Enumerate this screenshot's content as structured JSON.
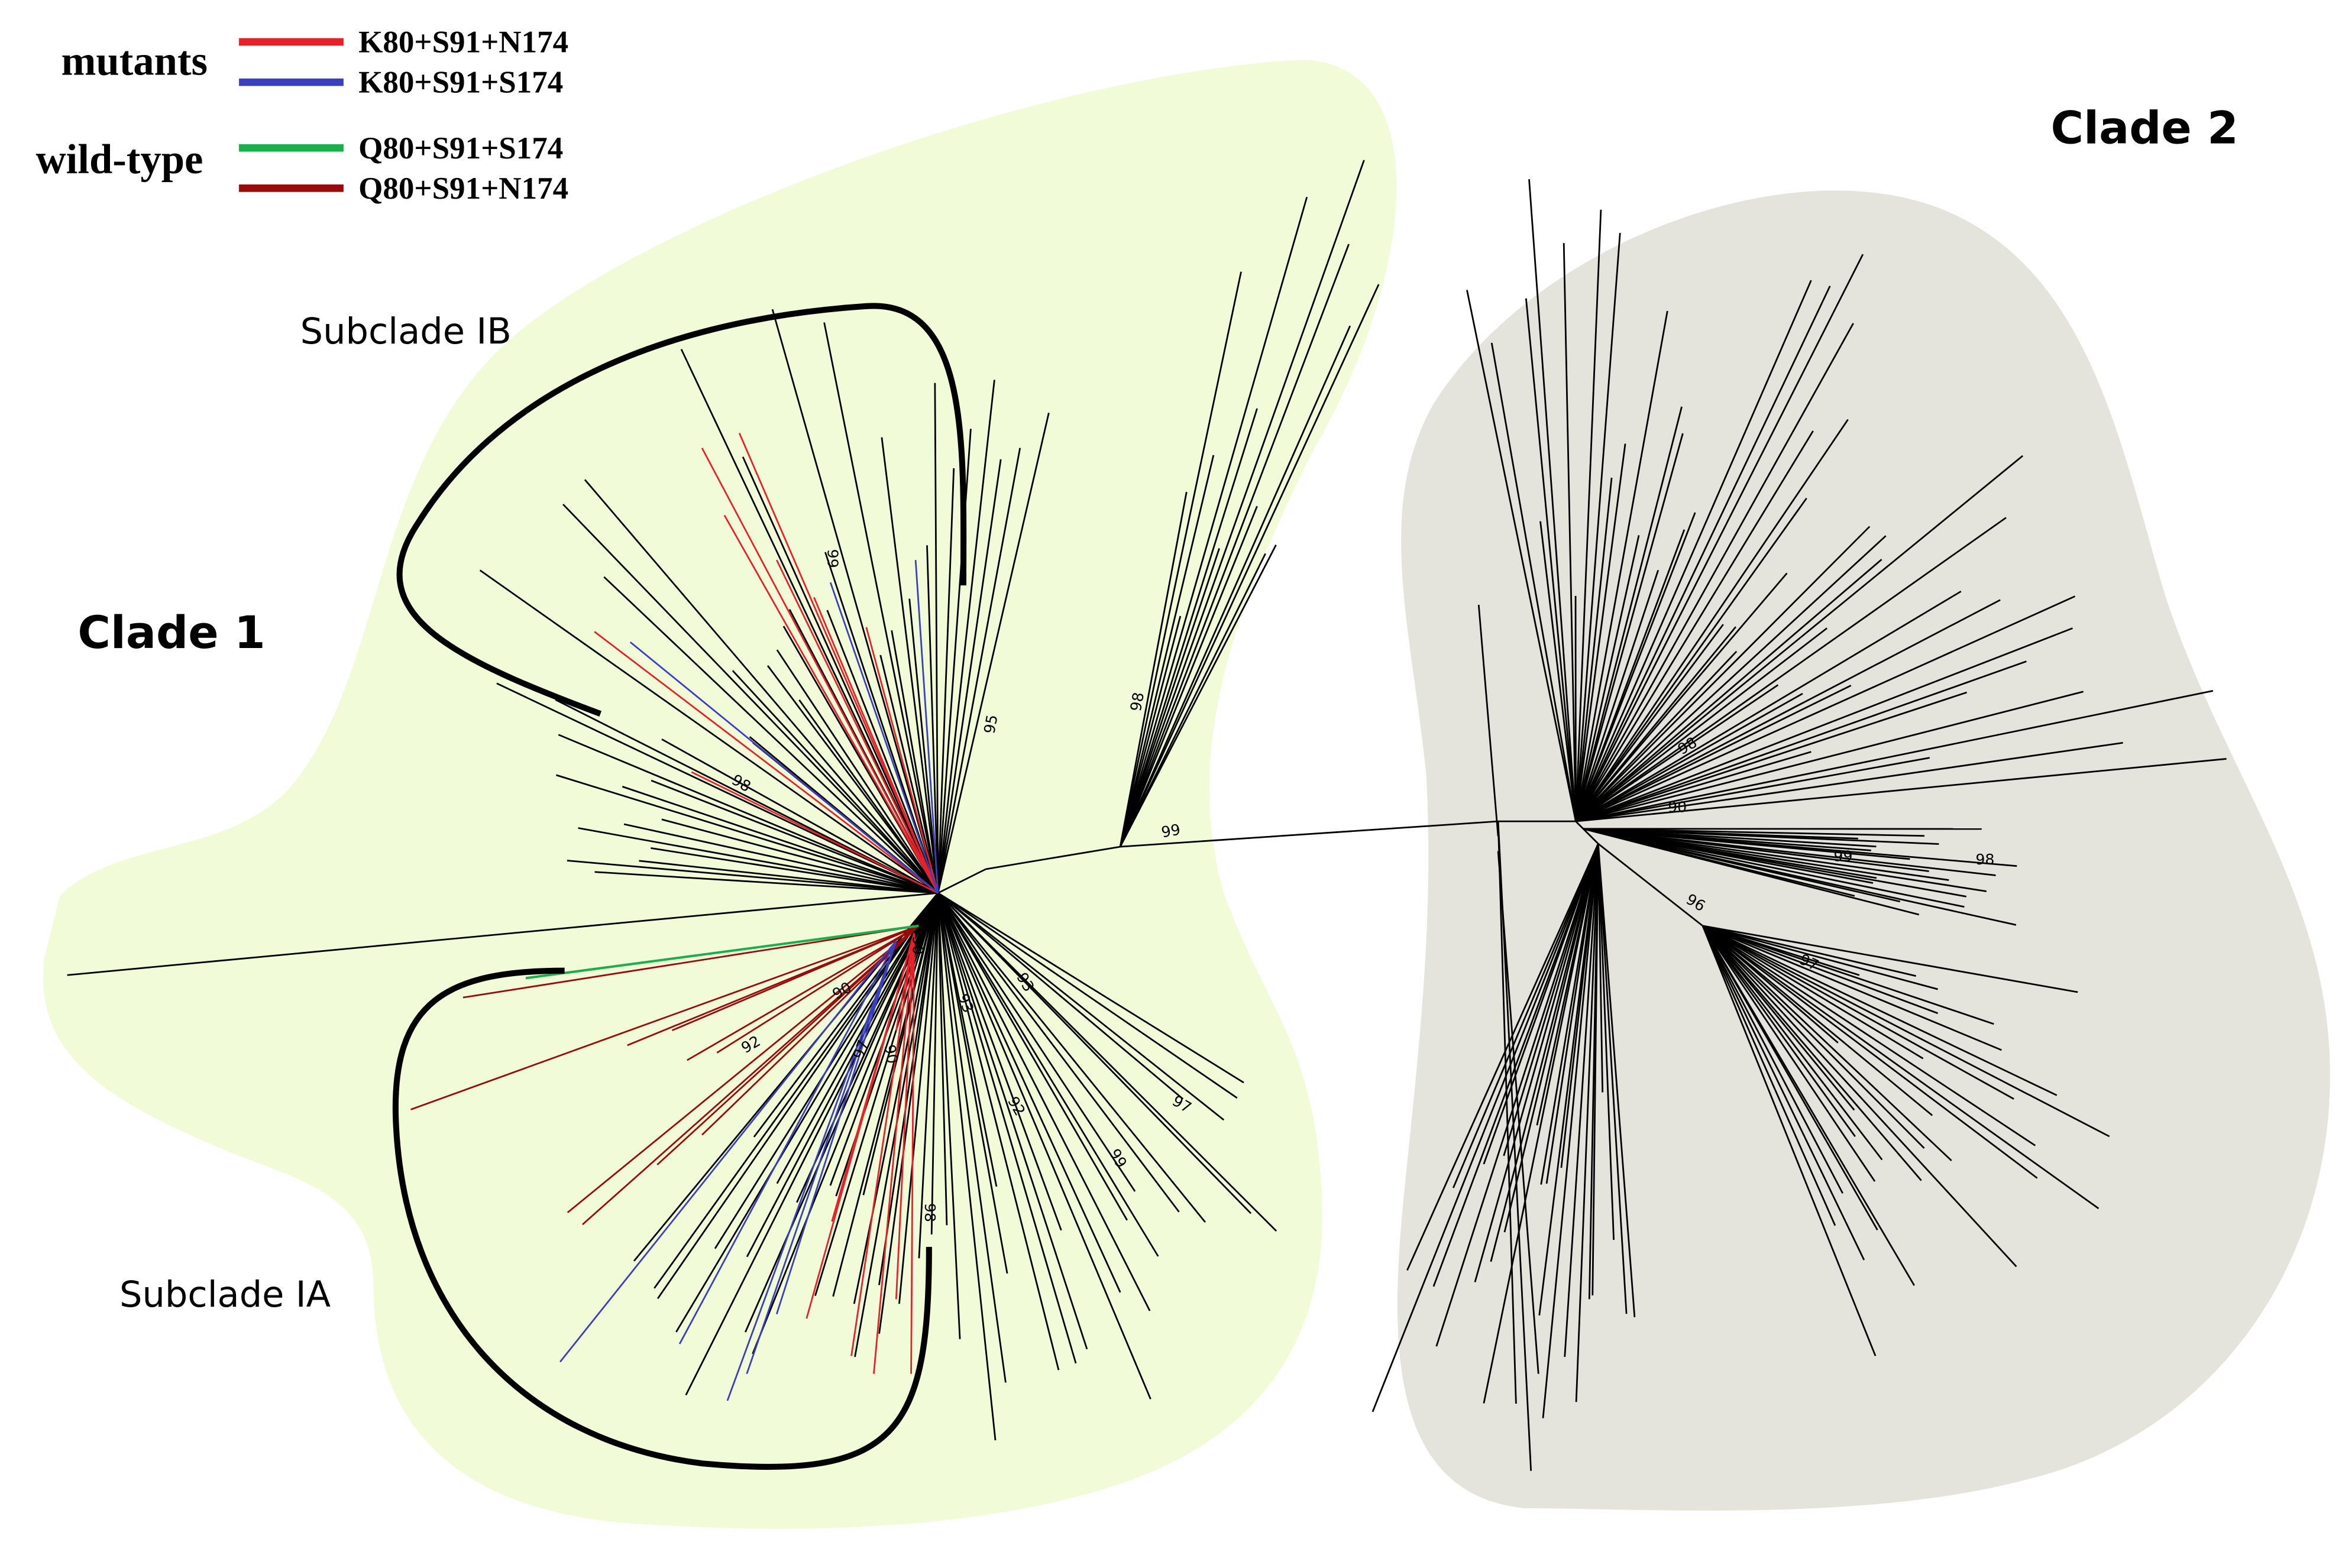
{
  "legend": {
    "groups": [
      {
        "label": "mutants",
        "entries": [
          {
            "label": "K80+S91+N174",
            "color": "#e8202a"
          },
          {
            "label": "K80+S91+S174",
            "color": "#3a3fbf"
          }
        ]
      },
      {
        "label": "wild-type",
        "entries": [
          {
            "label": "Q80+S91+S174",
            "color": "#18b04a"
          },
          {
            "label": "Q80+S91+N174",
            "color": "#9b0a0a"
          }
        ]
      }
    ]
  },
  "clades": [
    {
      "label": "Clade 1"
    },
    {
      "label": "Clade 2"
    }
  ],
  "subclades": [
    {
      "label": "Subclade IB"
    },
    {
      "label": "Subclade IA"
    }
  ],
  "bootstrap": [
    "99",
    "95",
    "98",
    "99",
    "98",
    "90",
    "93",
    "93",
    "90",
    "92",
    "97",
    "90",
    "92",
    "99",
    "97",
    "98",
    "98",
    "90",
    "99",
    "98",
    "96",
    "97"
  ]
}
